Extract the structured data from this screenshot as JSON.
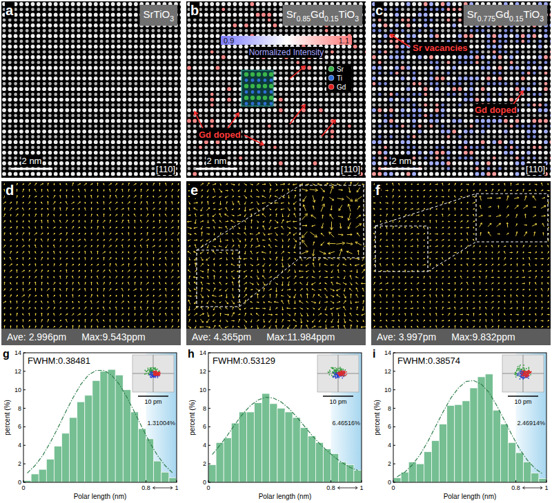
{
  "images": [
    {
      "letter": "a",
      "title": "SrTiO3",
      "scale_bar": "2 nm",
      "zone_axis": "[110]"
    },
    {
      "letter": "b",
      "title": "Sr0.85Gd0.15TiO3",
      "scale_bar": "2 nm",
      "zone_axis": "[110]",
      "colorbar": {
        "label": "Normalized Intensity",
        "range": [
          0.9,
          1.1
        ],
        "ticks": [
          0.9,
          1.1
        ]
      },
      "atoms": [
        {
          "name": "Sr",
          "color": "#39b54a"
        },
        {
          "name": "Ti",
          "color": "#2f6fd6"
        },
        {
          "name": "Gd",
          "color": "#e02020"
        }
      ],
      "annotations": [
        "Gd doped"
      ]
    },
    {
      "letter": "c",
      "title": "Sr0.775Gd0.15TiO3",
      "scale_bar": "2 nm",
      "zone_axis": "[110]",
      "annotations": [
        "Sr vacancies",
        "Gd doped"
      ]
    }
  ],
  "vector_maps": [
    {
      "letter": "d",
      "average": "Ave: 2.996pm",
      "maximum": "Max:9.543ppm"
    },
    {
      "letter": "e",
      "average": "Ave: 4.365pm",
      "maximum": "Max:11.984ppm"
    },
    {
      "letter": "f",
      "average": "Ave: 3.997pm",
      "maximum": "Max:9.832ppm"
    }
  ],
  "chart_data": [
    {
      "type": "histogram",
      "letter": "g",
      "annotation": "FWHM:0.38481",
      "x_label": "Polar length (nm)",
      "y_label": "percent (%)",
      "bins": [
        0,
        0.05,
        0.1,
        0.15,
        0.2,
        0.25,
        0.3,
        0.35,
        0.4,
        0.45,
        0.5,
        0.55,
        0.6,
        0.65,
        0.7,
        0.75,
        0.8,
        0.85,
        0.9,
        0.95,
        1.0
      ],
      "values": [
        0.2,
        0.9,
        1.4,
        2.5,
        3.9,
        5.3,
        7.0,
        8.7,
        9.4,
        11.0,
        12.0,
        12.2,
        11.6,
        10.0,
        7.6,
        5.8,
        4.7,
        2.3,
        1.1,
        0.5
      ],
      "color": "#76bf93",
      "fit": {
        "x": [
          0.025,
          0.075,
          0.125,
          0.175,
          0.225,
          0.275,
          0.325,
          0.375,
          0.425,
          0.475,
          0.525,
          0.575,
          0.625,
          0.675,
          0.725,
          0.775,
          0.825,
          0.875,
          0.925,
          0.975
        ],
        "values": [
          1.0,
          1.8,
          2.9,
          4.3,
          5.9,
          7.6,
          9.2,
          10.6,
          11.6,
          12.1,
          12.1,
          11.6,
          10.6,
          9.2,
          7.6,
          5.9,
          4.3,
          2.9,
          1.8,
          1.0
        ],
        "line_style": "dashdot",
        "color": "#2f7d4a"
      },
      "shaded": {
        "range": [
          0.8,
          1
        ],
        "label": "1.31004%"
      },
      "inset_label": "10 pm",
      "xlim": [
        0,
        1
      ],
      "xticks": [
        0,
        0.8,
        1
      ],
      "ylim": [
        0,
        14
      ],
      "yticks": [
        0,
        2,
        4,
        6,
        8,
        10,
        12,
        14
      ],
      "grid": false
    },
    {
      "type": "histogram",
      "letter": "h",
      "annotation": "FWHM:0.53129",
      "x_label": "Polar length (nm)",
      "y_label": "percent (%)",
      "bins": [
        0,
        0.05,
        0.1,
        0.15,
        0.2,
        0.25,
        0.3,
        0.35,
        0.4,
        0.45,
        0.5,
        0.55,
        0.6,
        0.65,
        0.7,
        0.75,
        0.8,
        0.85,
        0.9,
        0.95,
        1.0
      ],
      "values": [
        1.9,
        4.3,
        4.8,
        6.4,
        7.6,
        7.6,
        8.6,
        9.6,
        8.5,
        8.0,
        7.6,
        7.0,
        5.9,
        5.0,
        4.3,
        3.6,
        3.1,
        2.2,
        1.9,
        1.3
      ],
      "color": "#76bf93",
      "fit": {
        "x": [
          0.025,
          0.075,
          0.125,
          0.175,
          0.225,
          0.275,
          0.325,
          0.375,
          0.425,
          0.475,
          0.525,
          0.575,
          0.625,
          0.675,
          0.725,
          0.775,
          0.825,
          0.875,
          0.925,
          0.975
        ],
        "values": [
          3.0,
          4.0,
          5.1,
          6.3,
          7.4,
          8.3,
          8.9,
          9.2,
          9.1,
          8.7,
          8.0,
          7.1,
          6.1,
          5.1,
          4.2,
          3.4,
          2.7,
          2.1,
          1.6,
          1.3
        ],
        "line_style": "dashdot",
        "color": "#2f7d4a"
      },
      "shaded": {
        "range": [
          0.8,
          1
        ],
        "label": "6.46516%"
      },
      "inset_label": "10 pm",
      "xlim": [
        0,
        1
      ],
      "xticks": [
        0,
        0.8,
        1
      ],
      "ylim": [
        0,
        14
      ],
      "yticks": [
        0,
        2,
        4,
        6,
        8,
        10,
        12,
        14
      ],
      "grid": false
    },
    {
      "type": "histogram",
      "letter": "i",
      "annotation": "FWHM:0.38574",
      "x_label": "Polar length (nm)",
      "y_label": "percent (%)",
      "bins": [
        0,
        0.05,
        0.1,
        0.15,
        0.2,
        0.25,
        0.3,
        0.35,
        0.4,
        0.45,
        0.5,
        0.55,
        0.6,
        0.65,
        0.7,
        0.75,
        0.8,
        0.85,
        0.9,
        0.95,
        1.0
      ],
      "values": [
        0.5,
        1.1,
        2.2,
        2.0,
        3.3,
        4.5,
        6.3,
        8.3,
        8.4,
        8.8,
        10.2,
        11.4,
        11.7,
        7.8,
        6.3,
        4.3,
        3.2,
        2.2,
        1.0,
        0.4
      ],
      "color": "#76bf93",
      "fit": {
        "x": [
          0.025,
          0.075,
          0.125,
          0.175,
          0.225,
          0.275,
          0.325,
          0.375,
          0.425,
          0.475,
          0.525,
          0.575,
          0.625,
          0.675,
          0.725,
          0.775,
          0.825,
          0.875,
          0.925,
          0.975
        ],
        "values": [
          0.6,
          1.1,
          1.9,
          3.0,
          4.4,
          6.0,
          7.6,
          9.1,
          10.2,
          10.9,
          11.0,
          10.6,
          9.7,
          8.3,
          6.7,
          5.1,
          3.6,
          2.4,
          1.5,
          0.9
        ],
        "line_style": "dashdot",
        "color": "#2f7d4a"
      },
      "shaded": {
        "range": [
          0.8,
          1
        ],
        "label": "2.46914%"
      },
      "inset_label": "10 pm",
      "xlim": [
        0,
        1
      ],
      "xticks": [
        0,
        0.8,
        1
      ],
      "ylim": [
        0,
        14
      ],
      "yticks": [
        0,
        2,
        4,
        6,
        8,
        10,
        12,
        14
      ],
      "grid": false
    }
  ]
}
